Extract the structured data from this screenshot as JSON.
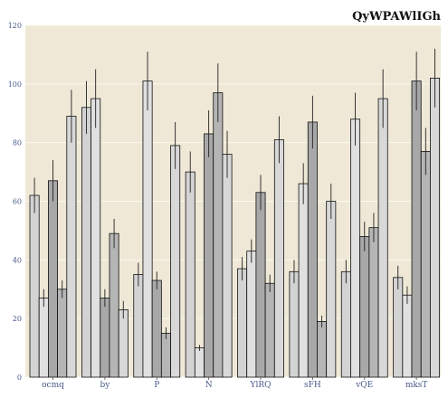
{
  "chart_data": {
    "type": "bar",
    "title": "QyWPAWlIGh",
    "xlabel": "",
    "ylabel": "",
    "ylim": [
      0,
      120
    ],
    "yticks": [
      0,
      20,
      40,
      60,
      80,
      100,
      120
    ],
    "grid": true,
    "legend": "none",
    "categories": [
      "ocmq",
      "by",
      "P",
      "N",
      "YlRQ",
      "sFH",
      "vQE",
      "mksT"
    ],
    "series": [
      {
        "color": "#d3d3d3",
        "values": [
          62,
          92,
          35,
          70,
          37,
          36,
          36,
          34
        ],
        "errors": [
          6,
          9,
          4,
          7,
          4,
          4,
          4,
          4
        ]
      },
      {
        "color": "#e0e0e0",
        "values": [
          27,
          95,
          101,
          10,
          43,
          66,
          88,
          28
        ],
        "errors": [
          3,
          10,
          10,
          1,
          4,
          7,
          9,
          3
        ]
      },
      {
        "color": "#a8a8a8",
        "values": [
          67,
          27,
          33,
          83,
          63,
          87,
          48,
          101
        ],
        "errors": [
          7,
          3,
          3,
          8,
          6,
          9,
          5,
          10
        ]
      },
      {
        "color": "#b5b5b5",
        "values": [
          30,
          49,
          15,
          97,
          32,
          19,
          51,
          77
        ],
        "errors": [
          3,
          5,
          2,
          10,
          3,
          2,
          5,
          8
        ]
      },
      {
        "color": "#d8d8d8",
        "values": [
          89,
          23,
          79,
          76,
          81,
          60,
          95,
          102
        ],
        "errors": [
          9,
          3,
          8,
          8,
          8,
          6,
          10,
          10
        ]
      }
    ],
    "colors": {
      "plot_background": "#efe8d6",
      "grid": "#fbf8f0",
      "bar_edge": "#111111",
      "tick_text": "#4a5a8a"
    }
  }
}
